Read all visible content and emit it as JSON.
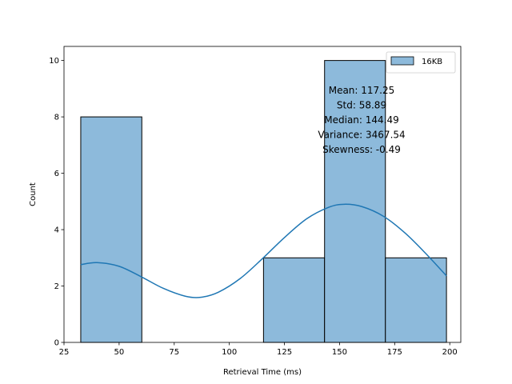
{
  "chart_data": {
    "type": "bar",
    "chart_kind": "histogram with kde",
    "title": "",
    "xlabel": "Retrieval Time (ms)",
    "ylabel": "Count",
    "xlim": [
      25,
      205
    ],
    "ylim": [
      0,
      10.5
    ],
    "xticks": [
      25,
      50,
      75,
      100,
      125,
      150,
      175,
      200
    ],
    "yticks": [
      0,
      2,
      4,
      6,
      8,
      10
    ],
    "bins": [
      {
        "start": 32.6,
        "end": 60.3,
        "count": 8
      },
      {
        "start": 60.3,
        "end": 87.9,
        "count": 0
      },
      {
        "start": 87.9,
        "end": 115.5,
        "count": 0
      },
      {
        "start": 115.5,
        "end": 143.2,
        "count": 3
      },
      {
        "start": 143.2,
        "end": 170.8,
        "count": 10
      },
      {
        "start": 170.8,
        "end": 198.5,
        "count": 3
      }
    ],
    "kde": {
      "x": [
        32.6,
        40,
        50,
        60,
        70,
        80,
        87,
        95,
        105,
        115,
        125,
        135,
        145,
        152,
        160,
        170,
        180,
        190,
        198.5
      ],
      "y": [
        2.76,
        2.83,
        2.7,
        2.33,
        1.92,
        1.64,
        1.6,
        1.78,
        2.27,
        2.97,
        3.72,
        4.38,
        4.79,
        4.9,
        4.82,
        4.47,
        3.86,
        3.08,
        2.36
      ]
    },
    "series": [
      {
        "name": "16KB",
        "color": "#1f77b4"
      }
    ],
    "legend_position": "upper right",
    "grid": false,
    "annotations": [
      "Mean: 117.25",
      "Std: 58.89",
      "Median: 144.49",
      "Variance: 3467.54",
      "Skewness: -0.49"
    ],
    "colors": {
      "bar_fill": "#8dbadb",
      "bar_edge": "#000000",
      "kde_line": "#1f77b4"
    }
  }
}
